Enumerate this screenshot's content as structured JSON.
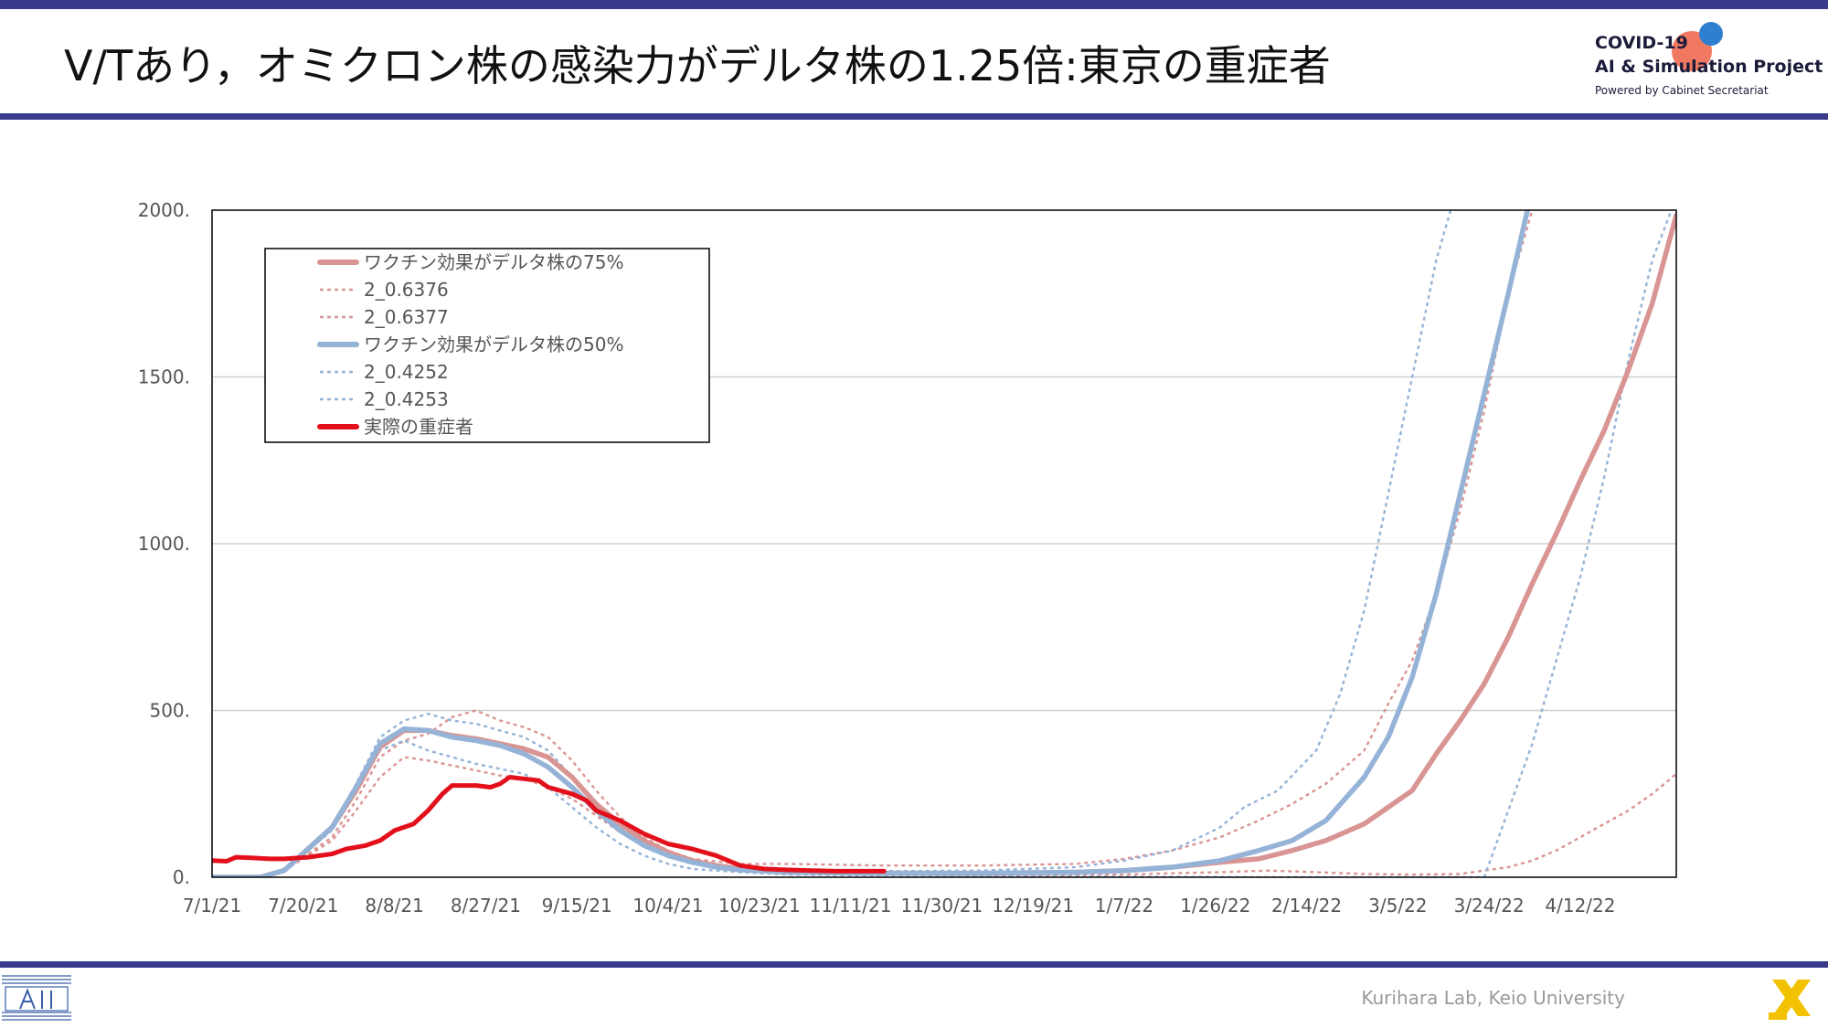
{
  "header": {
    "title": "V/Tあり，オミクロン株の感染力がデルタ株の1.25倍:東京の重症者"
  },
  "logo": {
    "line1": "COVID-19",
    "line2": "AI & Simulation Project",
    "line3": "Powered by Cabinet Secretariat"
  },
  "footer": {
    "text": "Kurihara Lab, Keio University"
  },
  "colors": {
    "accent_bar": "#3a3a8c",
    "pink": "#d99594",
    "blue": "#95b3d7",
    "red": "#e3101c"
  },
  "chart_data": {
    "type": "line",
    "x_ticks": [
      "7/1/21",
      "7/20/21",
      "8/8/21",
      "8/27/21",
      "9/15/21",
      "10/4/21",
      "10/23/21",
      "11/11/21",
      "11/30/21",
      "12/19/21",
      "1/7/22",
      "1/26/22",
      "2/14/22",
      "3/5/22",
      "3/24/22",
      "4/12/22"
    ],
    "x_range_days": [
      0,
      305
    ],
    "ylim": [
      0,
      2000
    ],
    "y_ticks": [
      0,
      500,
      1000,
      1500,
      2000
    ],
    "y_tick_labels": [
      "0.",
      "500.",
      "1000.",
      "1500.",
      "2000."
    ],
    "grid": "horizontal",
    "legend": "top-left",
    "series": [
      {
        "name": "ワクチン効果がデルタ株の75%",
        "style": "solid-thick",
        "color": "#d99594",
        "points": [
          [
            0,
            0
          ],
          [
            10,
            0
          ],
          [
            15,
            20
          ],
          [
            25,
            150
          ],
          [
            30,
            260
          ],
          [
            35,
            390
          ],
          [
            40,
            440
          ],
          [
            45,
            440
          ],
          [
            50,
            425
          ],
          [
            55,
            415
          ],
          [
            60,
            400
          ],
          [
            65,
            385
          ],
          [
            70,
            360
          ],
          [
            75,
            300
          ],
          [
            80,
            220
          ],
          [
            85,
            160
          ],
          [
            90,
            110
          ],
          [
            95,
            75
          ],
          [
            100,
            50
          ],
          [
            105,
            35
          ],
          [
            110,
            25
          ],
          [
            120,
            15
          ],
          [
            140,
            12
          ],
          [
            160,
            12
          ],
          [
            180,
            15
          ],
          [
            190,
            20
          ],
          [
            200,
            30
          ],
          [
            210,
            45
          ],
          [
            218,
            55
          ],
          [
            225,
            80
          ],
          [
            232,
            110
          ],
          [
            240,
            160
          ],
          [
            245,
            210
          ],
          [
            250,
            260
          ],
          [
            255,
            370
          ],
          [
            260,
            470
          ],
          [
            265,
            580
          ],
          [
            270,
            720
          ],
          [
            275,
            880
          ],
          [
            280,
            1030
          ],
          [
            285,
            1190
          ],
          [
            290,
            1340
          ],
          [
            295,
            1520
          ],
          [
            300,
            1720
          ],
          [
            305,
            1985
          ]
        ]
      },
      {
        "name": "2_0.6376",
        "style": "dotted",
        "color": "#d99594",
        "points": [
          [
            0,
            0
          ],
          [
            10,
            0
          ],
          [
            15,
            20
          ],
          [
            25,
            120
          ],
          [
            30,
            230
          ],
          [
            35,
            360
          ],
          [
            40,
            410
          ],
          [
            45,
            430
          ],
          [
            50,
            480
          ],
          [
            55,
            500
          ],
          [
            60,
            470
          ],
          [
            65,
            450
          ],
          [
            70,
            420
          ],
          [
            75,
            350
          ],
          [
            80,
            260
          ],
          [
            85,
            180
          ],
          [
            90,
            120
          ],
          [
            95,
            80
          ],
          [
            100,
            55
          ],
          [
            110,
            40
          ],
          [
            120,
            40
          ],
          [
            140,
            35
          ],
          [
            160,
            35
          ],
          [
            180,
            40
          ],
          [
            190,
            55
          ],
          [
            200,
            80
          ],
          [
            210,
            120
          ],
          [
            218,
            170
          ],
          [
            225,
            220
          ],
          [
            232,
            280
          ],
          [
            240,
            380
          ],
          [
            245,
            520
          ],
          [
            250,
            650
          ],
          [
            255,
            850
          ],
          [
            260,
            1100
          ],
          [
            265,
            1400
          ],
          [
            270,
            1750
          ],
          [
            275,
            2000
          ]
        ]
      },
      {
        "name": "2_0.6377",
        "style": "dotted",
        "color": "#d99594",
        "points": [
          [
            0,
            0
          ],
          [
            10,
            0
          ],
          [
            15,
            20
          ],
          [
            25,
            110
          ],
          [
            30,
            200
          ],
          [
            35,
            300
          ],
          [
            40,
            360
          ],
          [
            45,
            350
          ],
          [
            50,
            335
          ],
          [
            55,
            320
          ],
          [
            60,
            305
          ],
          [
            65,
            295
          ],
          [
            70,
            270
          ],
          [
            75,
            235
          ],
          [
            80,
            185
          ],
          [
            85,
            135
          ],
          [
            90,
            95
          ],
          [
            95,
            65
          ],
          [
            100,
            45
          ],
          [
            110,
            25
          ],
          [
            120,
            12
          ],
          [
            140,
            8
          ],
          [
            160,
            6
          ],
          [
            180,
            6
          ],
          [
            190,
            8
          ],
          [
            200,
            12
          ],
          [
            210,
            15
          ],
          [
            220,
            20
          ],
          [
            230,
            15
          ],
          [
            240,
            10
          ],
          [
            250,
            8
          ],
          [
            260,
            10
          ],
          [
            265,
            20
          ],
          [
            270,
            30
          ],
          [
            275,
            50
          ],
          [
            280,
            80
          ],
          [
            285,
            120
          ],
          [
            290,
            160
          ],
          [
            295,
            200
          ],
          [
            300,
            250
          ],
          [
            305,
            310
          ]
        ]
      },
      {
        "name": "ワクチン効果がデルタ株の50%",
        "style": "solid-thick",
        "color": "#95b3d7",
        "points": [
          [
            0,
            0
          ],
          [
            10,
            0
          ],
          [
            15,
            20
          ],
          [
            25,
            150
          ],
          [
            30,
            270
          ],
          [
            35,
            400
          ],
          [
            40,
            445
          ],
          [
            45,
            440
          ],
          [
            50,
            420
          ],
          [
            55,
            410
          ],
          [
            60,
            395
          ],
          [
            65,
            370
          ],
          [
            70,
            330
          ],
          [
            75,
            270
          ],
          [
            80,
            200
          ],
          [
            85,
            140
          ],
          [
            90,
            95
          ],
          [
            95,
            65
          ],
          [
            100,
            45
          ],
          [
            105,
            30
          ],
          [
            110,
            22
          ],
          [
            120,
            15
          ],
          [
            140,
            12
          ],
          [
            160,
            12
          ],
          [
            180,
            15
          ],
          [
            190,
            20
          ],
          [
            200,
            30
          ],
          [
            210,
            50
          ],
          [
            218,
            80
          ],
          [
            225,
            110
          ],
          [
            232,
            170
          ],
          [
            240,
            300
          ],
          [
            245,
            420
          ],
          [
            250,
            600
          ],
          [
            255,
            850
          ],
          [
            260,
            1150
          ],
          [
            265,
            1450
          ],
          [
            270,
            1750
          ],
          [
            274,
            2000
          ]
        ]
      },
      {
        "name": "2_0.4252",
        "style": "dotted",
        "color": "#95b3d7",
        "points": [
          [
            0,
            0
          ],
          [
            10,
            0
          ],
          [
            15,
            20
          ],
          [
            25,
            150
          ],
          [
            30,
            280
          ],
          [
            35,
            420
          ],
          [
            40,
            470
          ],
          [
            45,
            490
          ],
          [
            50,
            470
          ],
          [
            55,
            460
          ],
          [
            60,
            440
          ],
          [
            65,
            420
          ],
          [
            70,
            380
          ],
          [
            75,
            300
          ],
          [
            80,
            220
          ],
          [
            85,
            150
          ],
          [
            90,
            100
          ],
          [
            95,
            65
          ],
          [
            100,
            40
          ],
          [
            110,
            25
          ],
          [
            120,
            20
          ],
          [
            140,
            18
          ],
          [
            160,
            20
          ],
          [
            180,
            30
          ],
          [
            190,
            50
          ],
          [
            200,
            80
          ],
          [
            210,
            150
          ],
          [
            215,
            210
          ],
          [
            222,
            260
          ],
          [
            230,
            380
          ],
          [
            235,
            550
          ],
          [
            240,
            800
          ],
          [
            245,
            1150
          ],
          [
            250,
            1500
          ],
          [
            255,
            1850
          ],
          [
            258,
            2000
          ]
        ]
      },
      {
        "name": "2_0.4253",
        "style": "dotted",
        "color": "#95b3d7",
        "points": [
          [
            0,
            0
          ],
          [
            10,
            0
          ],
          [
            15,
            20
          ],
          [
            25,
            140
          ],
          [
            30,
            260
          ],
          [
            35,
            380
          ],
          [
            40,
            410
          ],
          [
            45,
            380
          ],
          [
            50,
            360
          ],
          [
            55,
            340
          ],
          [
            60,
            325
          ],
          [
            65,
            310
          ],
          [
            70,
            270
          ],
          [
            75,
            210
          ],
          [
            80,
            150
          ],
          [
            85,
            100
          ],
          [
            90,
            65
          ],
          [
            95,
            40
          ],
          [
            100,
            25
          ],
          [
            110,
            15
          ],
          [
            120,
            8
          ],
          [
            140,
            5
          ],
          [
            160,
            3
          ],
          [
            180,
            2
          ],
          [
            200,
            1
          ],
          [
            220,
            0
          ],
          [
            240,
            0
          ],
          [
            260,
            0
          ],
          [
            265,
            0
          ],
          [
            270,
            200
          ],
          [
            275,
            400
          ],
          [
            280,
            650
          ],
          [
            285,
            900
          ],
          [
            290,
            1200
          ],
          [
            295,
            1550
          ],
          [
            300,
            1850
          ],
          [
            304,
            2000
          ]
        ]
      },
      {
        "name": "実際の重症者",
        "style": "solid-thick",
        "color": "#e3101c",
        "points": [
          [
            0,
            50
          ],
          [
            3,
            48
          ],
          [
            5,
            60
          ],
          [
            8,
            58
          ],
          [
            12,
            55
          ],
          [
            15,
            55
          ],
          [
            20,
            60
          ],
          [
            25,
            70
          ],
          [
            28,
            85
          ],
          [
            32,
            95
          ],
          [
            35,
            110
          ],
          [
            38,
            140
          ],
          [
            42,
            160
          ],
          [
            45,
            200
          ],
          [
            48,
            250
          ],
          [
            50,
            275
          ],
          [
            55,
            275
          ],
          [
            58,
            270
          ],
          [
            60,
            280
          ],
          [
            62,
            300
          ],
          [
            65,
            295
          ],
          [
            68,
            290
          ],
          [
            70,
            270
          ],
          [
            75,
            250
          ],
          [
            78,
            230
          ],
          [
            80,
            200
          ],
          [
            85,
            170
          ],
          [
            90,
            130
          ],
          [
            95,
            100
          ],
          [
            100,
            85
          ],
          [
            105,
            65
          ],
          [
            110,
            35
          ],
          [
            115,
            25
          ],
          [
            120,
            22
          ],
          [
            125,
            20
          ],
          [
            130,
            18
          ],
          [
            140,
            18
          ]
        ]
      }
    ]
  }
}
